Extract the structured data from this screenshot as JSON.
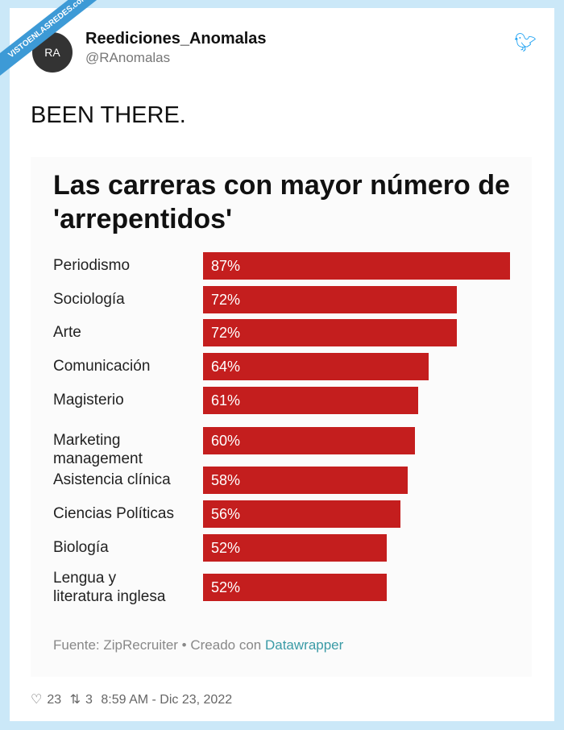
{
  "watermark": "VISTOENLASREDES.com",
  "tweet": {
    "name": "Reediciones_Anomalas",
    "handle": "@RAnomalas",
    "avatar_text": "RA",
    "text": "BEEN THERE.",
    "likes": "23",
    "retweets": "3",
    "timestamp": "8:59 AM - Dic 23, 2022"
  },
  "chart_data": {
    "type": "bar",
    "title": "Las carreras con mayor número de 'arrepentidos'",
    "categories": [
      "Periodismo",
      "Sociología",
      "Arte",
      "Comunicación",
      "Magisterio",
      "Marketing management",
      "Asistencia clínica",
      "Ciencias Políticas",
      "Biología",
      "Lengua y literatura inglesa"
    ],
    "values": [
      87,
      72,
      72,
      64,
      61,
      60,
      58,
      56,
      52,
      52
    ],
    "value_labels": [
      "87%",
      "72%",
      "72%",
      "64%",
      "61%",
      "60%",
      "58%",
      "56%",
      "52%",
      "52%"
    ],
    "orientation": "horizontal",
    "bar_color": "#c41e1e",
    "source": "Fuente: ZipRecruiter • Creado con ",
    "source_link": "Datawrapper"
  }
}
